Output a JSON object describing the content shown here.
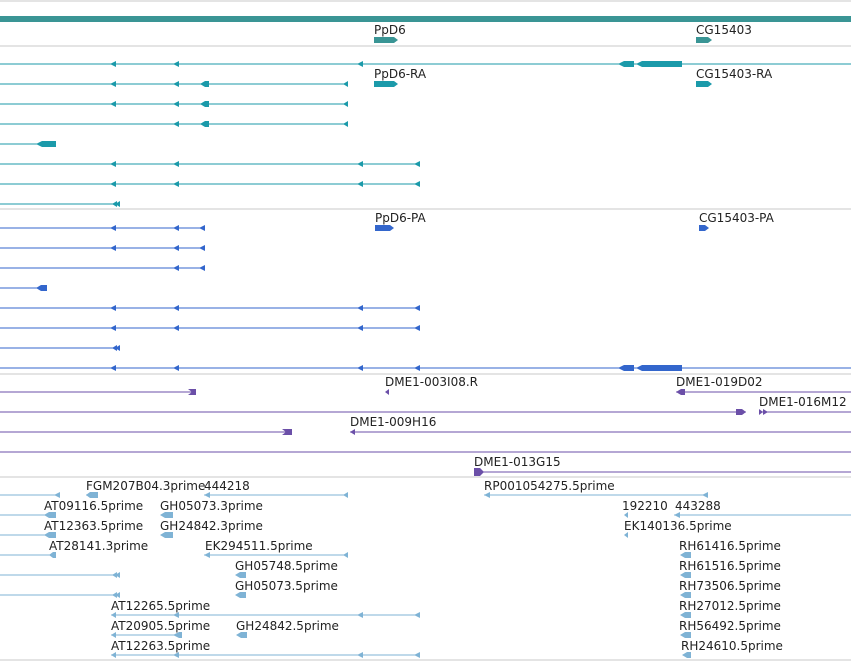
{
  "colors": {
    "ruler": "#3a9595",
    "gene": "#3a9595",
    "mrna": "#1b9aaa",
    "cds": "#3366cc",
    "clone": "#6b4fa8",
    "est": "#7fb3d5",
    "divider": "#c8c8c8"
  },
  "labels": {
    "gene_ppd6": "PpD6",
    "gene_cg15403": "CG15403",
    "mrna_ppd6": "PpD6-RA",
    "mrna_cg15403": "CG15403-RA",
    "cds_ppd6": "PpD6-PA",
    "cds_cg15403": "CG15403-PA",
    "clone_003i08": "DME1-003I08.R",
    "clone_019d02": "DME1-019D02",
    "clone_016m12": "DME1-016M12",
    "clone_009h16": "DME1-009H16",
    "clone_013g15": "DME1-013G15",
    "est_fgm": "FGM207B04.3prime",
    "est_444218": "444218",
    "est_rp001": "RP001054275.5prime",
    "est_at09116": "AT09116.5prime",
    "est_gh05073_3": "GH05073.3prime",
    "est_192210": "192210",
    "est_443288": "443288",
    "est_at12363": "AT12363.5prime",
    "est_gh24842_3": "GH24842.3prime",
    "est_ek140136": "EK140136.5prime",
    "est_at28141": "AT28141.3prime",
    "est_ek294511": "EK294511.5prime",
    "est_rh61416": "RH61416.5prime",
    "est_gh05748": "GH05748.5prime",
    "est_rh61516": "RH61516.5prime",
    "est_gh05073_5": "GH05073.5prime",
    "est_rh73506": "RH73506.5prime",
    "est_at12265": "AT12265.5prime",
    "est_rh27012": "RH27012.5prime",
    "est_at20905": "AT20905.5prime",
    "est_gh24842_5": "GH24842.5prime",
    "est_rh56492": "RH56492.5prime",
    "est_at12263": "AT12263.5prime",
    "est_rh24610": "RH24610.5prime"
  }
}
